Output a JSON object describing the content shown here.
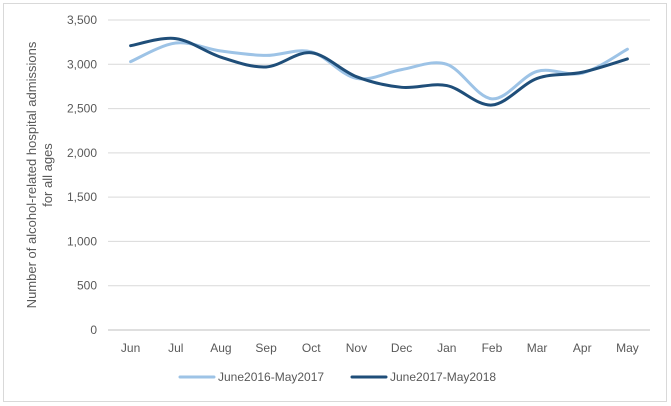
{
  "chart_data": {
    "type": "line",
    "categories": [
      "Jun",
      "Jul",
      "Aug",
      "Sep",
      "Oct",
      "Nov",
      "Dec",
      "Jan",
      "Feb",
      "Mar",
      "Apr",
      "May"
    ],
    "series": [
      {
        "name": "June2016-May2017",
        "color": "#9dc3e6",
        "values": [
          3030,
          3240,
          3150,
          3100,
          3140,
          2840,
          2940,
          3000,
          2610,
          2920,
          2900,
          3170
        ]
      },
      {
        "name": "June2017-May2018",
        "color": "#1f4e79",
        "values": [
          3210,
          3290,
          3080,
          2970,
          3130,
          2860,
          2740,
          2760,
          2540,
          2840,
          2910,
          3060
        ]
      }
    ],
    "ylabel": "Number of alcohol-related hospital admissions for all ages",
    "ylabel_lines": [
      "Number of alcohol-related hospital admissions",
      "for all ages"
    ],
    "xlabel": "",
    "ylim": [
      0,
      3500
    ],
    "yticks": [
      0,
      500,
      1000,
      1500,
      2000,
      2500,
      3000,
      3500
    ],
    "ytick_labels": [
      "0",
      "500",
      "1,000",
      "1,500",
      "2,000",
      "2,500",
      "3,000",
      "3,500"
    ],
    "grid": "horizontal",
    "legend_position": "bottom"
  }
}
